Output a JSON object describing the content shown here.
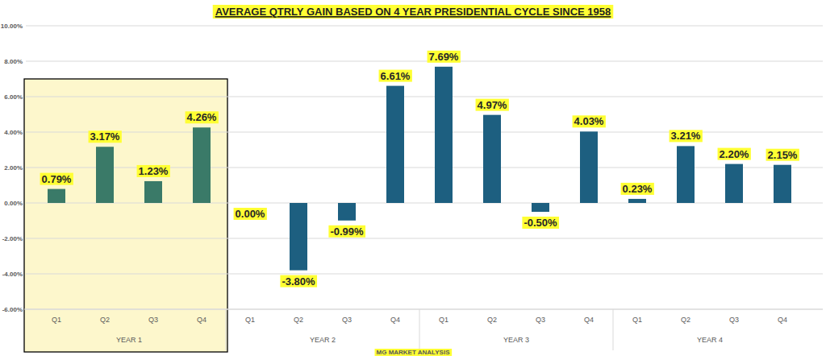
{
  "chart_data": {
    "type": "bar",
    "title": "AVERAGE QTRLY GAIN BASED ON 4 YEAR PRESIDENTIAL CYCLE SINCE 1958",
    "categories": [
      "Q1",
      "Q2",
      "Q3",
      "Q4",
      "Q1",
      "Q2",
      "Q3",
      "Q4",
      "Q1",
      "Q2",
      "Q3",
      "Q4",
      "Q1",
      "Q2",
      "Q3",
      "Q4"
    ],
    "x_groups": [
      "YEAR 1",
      "YEAR 2",
      "YEAR 3",
      "YEAR 4"
    ],
    "values": [
      0.79,
      3.17,
      1.23,
      4.26,
      0.0,
      -3.8,
      -0.99,
      6.61,
      7.69,
      4.97,
      -0.5,
      4.03,
      0.23,
      3.21,
      2.2,
      2.15
    ],
    "value_labels": [
      "0.79%",
      "3.17%",
      "1.23%",
      "4.26%",
      "0.00%",
      "-3.80%",
      "-0.99%",
      "6.61%",
      "7.69%",
      "4.97%",
      "-0.50%",
      "4.03%",
      "0.23%",
      "3.21%",
      "2.20%",
      "2.15%"
    ],
    "colors": [
      "#3a7a68",
      "#3a7a68",
      "#3a7a68",
      "#3a7a68",
      "#1d5f80",
      "#1d5f80",
      "#1d5f80",
      "#1d5f80",
      "#1d5f80",
      "#1d5f80",
      "#1d5f80",
      "#1d5f80",
      "#1d5f80",
      "#1d5f80",
      "#1d5f80",
      "#1d5f80"
    ],
    "ylim": [
      -6,
      10
    ],
    "yticks": [
      {
        "value": -6,
        "label": "-6.00%"
      },
      {
        "value": -4,
        "label": "-4.00%"
      },
      {
        "value": -2,
        "label": "-2.00%"
      },
      {
        "value": 0,
        "label": "0.00%"
      },
      {
        "value": 2,
        "label": "2.00%"
      },
      {
        "value": 4,
        "label": "4.00%"
      },
      {
        "value": 6,
        "label": "6.00%"
      },
      {
        "value": 8,
        "label": "8.00%"
      },
      {
        "value": 10,
        "label": "10.00%"
      }
    ],
    "grid": true,
    "data_labels": true,
    "annotations": [
      "MG MARKET ANALYSIS"
    ]
  }
}
